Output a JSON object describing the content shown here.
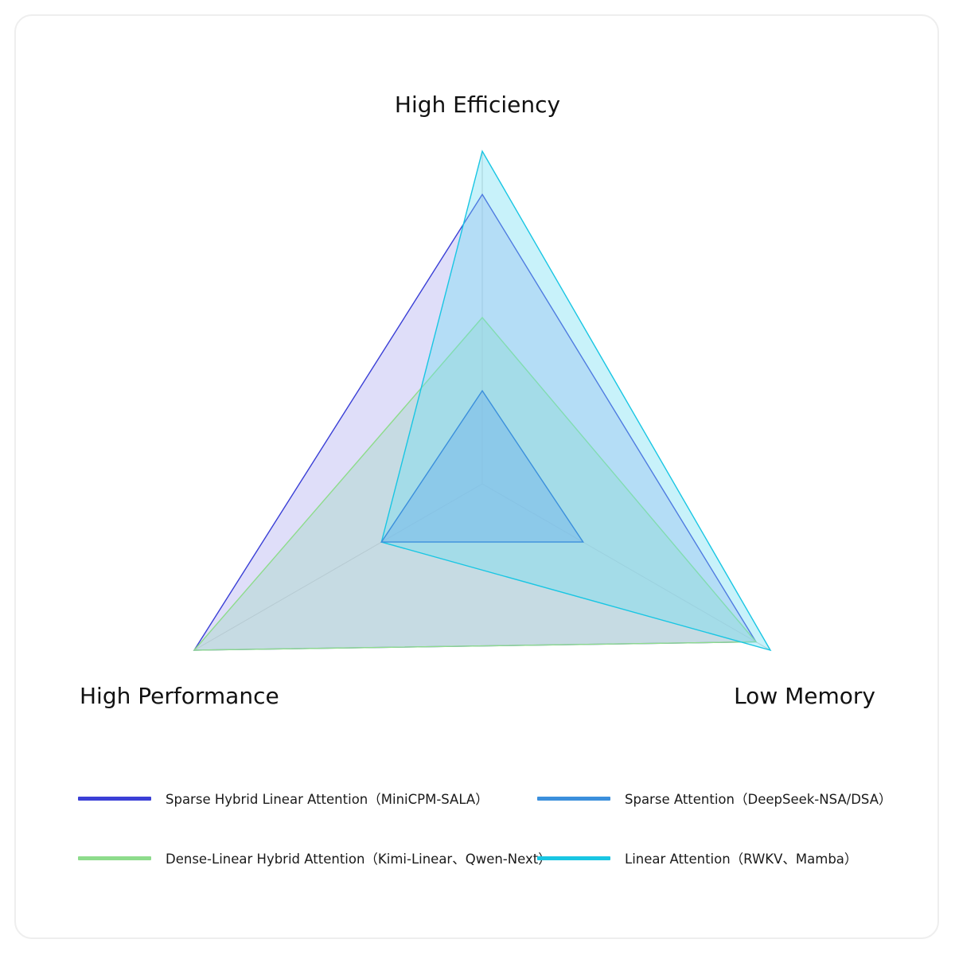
{
  "chart_data": {
    "type": "radar",
    "axes": [
      "High Efficiency",
      "Low Memory",
      "High Performance"
    ],
    "range": [
      0,
      1
    ],
    "grid": true,
    "legend_position": "bottom",
    "series": [
      {
        "name": "Sparse Hybrid Linear Attention（MiniCPM-SALA）",
        "values": [
          0.87,
          0.95,
          1.0
        ],
        "color": "#3a3fd6",
        "fill": "#b8b6f2"
      },
      {
        "name": "Sparse Attention（DeepSeek-NSA/DSA）",
        "values": [
          0.28,
          0.35,
          0.35
        ],
        "color": "#3b8fdc",
        "fill": "#6fb2ec"
      },
      {
        "name": "Dense-Linear Hybrid Attention（Kimi-Linear、Qwen-Next）",
        "values": [
          0.5,
          0.95,
          1.0
        ],
        "color": "#8edc8c",
        "fill": "#a8d8c8"
      },
      {
        "name": "Linear Attention（RWKV、Mamba）",
        "values": [
          1.0,
          1.0,
          0.35
        ],
        "color": "#19c6e3",
        "fill": "#6edcf2"
      }
    ]
  },
  "labels": {
    "top": "High Efficiency",
    "left": "High Performance",
    "right": "Low Memory"
  }
}
